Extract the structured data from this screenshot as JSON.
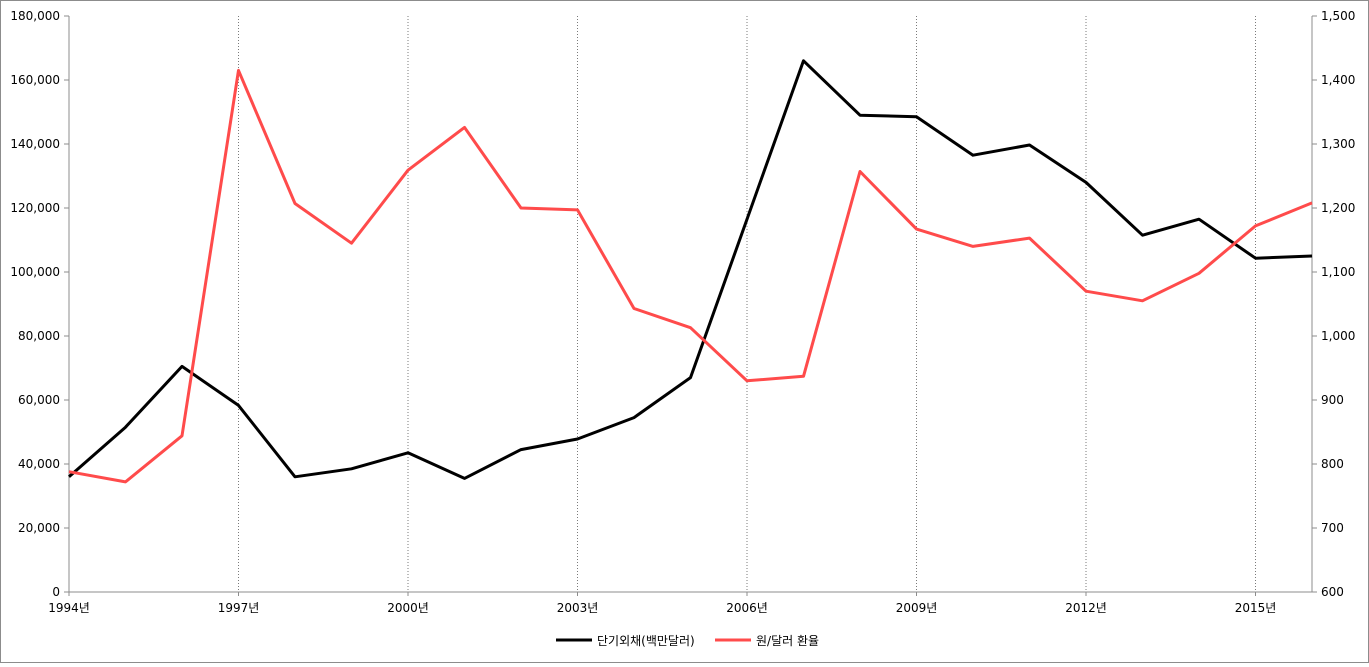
{
  "chart_data": {
    "type": "line",
    "x": [
      "1994년",
      "1995년",
      "1996년",
      "1997년",
      "1998년",
      "1999년",
      "2000년",
      "2001년",
      "2002년",
      "2003년",
      "2004년",
      "2005년",
      "2006년",
      "2007년",
      "2008년",
      "2009년",
      "2010년",
      "2011년",
      "2012년",
      "2013년",
      "2014년",
      "2015년",
      "2016년"
    ],
    "x_tick_labels": [
      "1994년",
      "1997년",
      "2000년",
      "2003년",
      "2006년",
      "2009년",
      "2012년",
      "2015년"
    ],
    "series": [
      {
        "name": "단기외채(백만달러)",
        "axis": "left",
        "color": "#000000",
        "values": [
          36000,
          51500,
          70500,
          58300,
          36000,
          38500,
          43500,
          35500,
          44500,
          47800,
          54500,
          67000,
          116500,
          166000,
          149000,
          148500,
          136500,
          139700,
          128000,
          111500,
          116500,
          104300,
          105000
        ]
      },
      {
        "name": "원/달러 환율",
        "axis": "right",
        "color": "#FF4B4B",
        "values": [
          788,
          772,
          844,
          1415,
          1207,
          1145,
          1259,
          1326,
          1200,
          1197,
          1043,
          1013,
          930,
          937,
          1257,
          1167,
          1140,
          1153,
          1070,
          1055,
          1098,
          1172,
          1208
        ]
      }
    ],
    "y_left": {
      "lim": [
        0,
        180000
      ],
      "ticks": [
        "0",
        "20,000",
        "40,000",
        "60,000",
        "80,000",
        "100,000",
        "120,000",
        "140,000",
        "160,000",
        "180,000"
      ]
    },
    "y_right": {
      "lim": [
        600,
        1500
      ],
      "ticks": [
        "600",
        "700",
        "800",
        "900",
        "1,000",
        "1,100",
        "1,200",
        "1,300",
        "1,400",
        "1,500"
      ]
    },
    "grid": "vertical-dotted",
    "legend": "bottom-center"
  }
}
